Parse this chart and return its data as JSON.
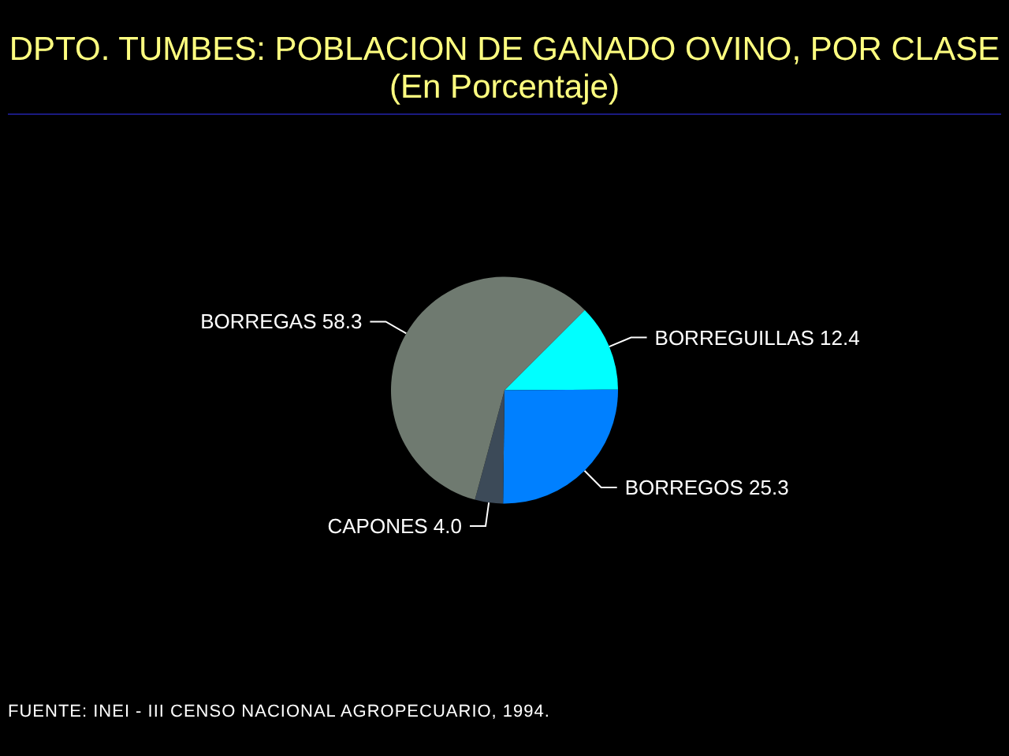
{
  "chart_data": {
    "type": "pie",
    "title": "DPTO. TUMBES: POBLACION DE GANADO OVINO, POR CLASE",
    "subtitle": "(En Porcentaje)",
    "categories": [
      "BORREGUILLAS",
      "BORREGOS",
      "CAPONES",
      "BORREGAS"
    ],
    "values": [
      12.4,
      25.3,
      4.0,
      58.3
    ],
    "value_labels": [
      "12.4",
      "25.3",
      "4.0",
      "58.3"
    ],
    "colors": [
      "#00ffff",
      "#0080ff",
      "#3c4a58",
      "#6f7a70"
    ],
    "annotations": [
      "FUENTE: INEI - III CENSO NACIONAL AGROPECUARIO, 1994."
    ],
    "legend": false
  }
}
